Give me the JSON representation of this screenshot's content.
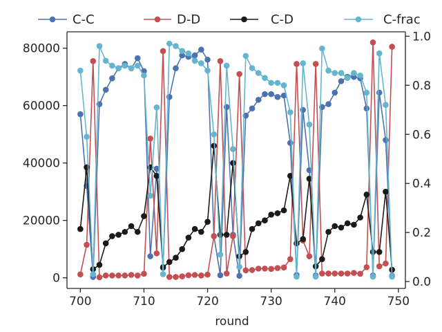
{
  "chart_data": {
    "type": "line",
    "xlabel": "round",
    "xlim": [
      697.9,
      751.1
    ],
    "xticks": [
      700,
      710,
      720,
      730,
      740,
      750
    ],
    "y_left": {
      "lim": [
        -3700,
        85700
      ],
      "ticks": [
        0,
        20000,
        40000,
        60000,
        80000
      ]
    },
    "y_right": {
      "lim": [
        -0.028,
        1.018
      ],
      "ticks": [
        0.0,
        0.2,
        0.4,
        0.6,
        0.8,
        1.0
      ],
      "tick_labels": [
        "0.0",
        "0.2",
        "0.4",
        "0.6",
        "0.8",
        "1.0"
      ]
    },
    "legend": [
      "C-C",
      "D-D",
      "C-D",
      "C-frac"
    ],
    "legend_placement": "top",
    "grid": false,
    "x": [
      700,
      701,
      702,
      703,
      704,
      705,
      706,
      707,
      708,
      709,
      710,
      711,
      712,
      713,
      714,
      715,
      716,
      717,
      718,
      719,
      720,
      721,
      722,
      723,
      724,
      725,
      726,
      727,
      728,
      729,
      730,
      731,
      732,
      733,
      734,
      735,
      736,
      737,
      738,
      739,
      740,
      741,
      742,
      743,
      744,
      745,
      746,
      747,
      748,
      749
    ],
    "series": [
      {
        "name": "C-C",
        "axis": "left",
        "color": "#4c72b0",
        "values": [
          57000,
          32000,
          300,
          60500,
          65500,
          69500,
          73000,
          74500,
          73000,
          76500,
          72000,
          7500,
          38000,
          3500,
          63000,
          73000,
          77500,
          77000,
          77500,
          79500,
          76000,
          14500,
          900,
          59500,
          15000,
          700,
          56500,
          59000,
          62000,
          64000,
          64000,
          63000,
          63500,
          47000,
          1000,
          58500,
          37500,
          800,
          59500,
          60500,
          64500,
          68500,
          70000,
          70000,
          69500,
          59000,
          800,
          64500,
          48000,
          700
        ]
      },
      {
        "name": "D-D",
        "axis": "left",
        "color": "#c44e52",
        "values": [
          1200,
          11500,
          75500,
          200,
          800,
          800,
          800,
          800,
          1000,
          800,
          1400,
          48500,
          8500,
          79000,
          300,
          300,
          500,
          900,
          1000,
          800,
          1100,
          14500,
          75500,
          1500,
          14500,
          71000,
          2600,
          2700,
          3200,
          3200,
          3100,
          3400,
          3600,
          6500,
          74500,
          13000,
          7500,
          74500,
          1500,
          1500,
          1500,
          1500,
          1500,
          1700,
          1400,
          3700,
          82000,
          4000,
          5000,
          80500
        ]
      },
      {
        "name": "C-D",
        "axis": "left",
        "color": "#1a1a1a",
        "values": [
          17000,
          38500,
          3000,
          4500,
          12000,
          14500,
          15000,
          16000,
          18000,
          16000,
          21500,
          38500,
          35500,
          3700,
          5500,
          7000,
          10000,
          14000,
          17000,
          16000,
          19500,
          46000,
          15000,
          15000,
          40000,
          7500,
          9000,
          17000,
          19000,
          20000,
          22000,
          22500,
          23500,
          35500,
          12000,
          13500,
          34500,
          4000,
          6500,
          16000,
          18000,
          17500,
          19000,
          18500,
          21000,
          29000,
          9000,
          9000,
          30000,
          2800
        ]
      },
      {
        "name": "C-frac",
        "axis": "right",
        "color": "#64b5cd",
        "values": [
          0.86,
          0.59,
          0.03,
          0.96,
          0.9,
          0.88,
          0.87,
          0.88,
          0.87,
          0.88,
          0.84,
          0.35,
          0.71,
          0.03,
          0.97,
          0.96,
          0.94,
          0.93,
          0.9,
          0.89,
          0.86,
          0.6,
          0.11,
          0.88,
          0.54,
          0.06,
          0.92,
          0.87,
          0.85,
          0.83,
          0.81,
          0.81,
          0.8,
          0.69,
          0.02,
          0.89,
          0.64,
          0.02,
          0.95,
          0.86,
          0.85,
          0.85,
          0.83,
          0.85,
          0.84,
          0.77,
          0.02,
          0.93,
          0.72,
          0.02
        ]
      }
    ]
  }
}
